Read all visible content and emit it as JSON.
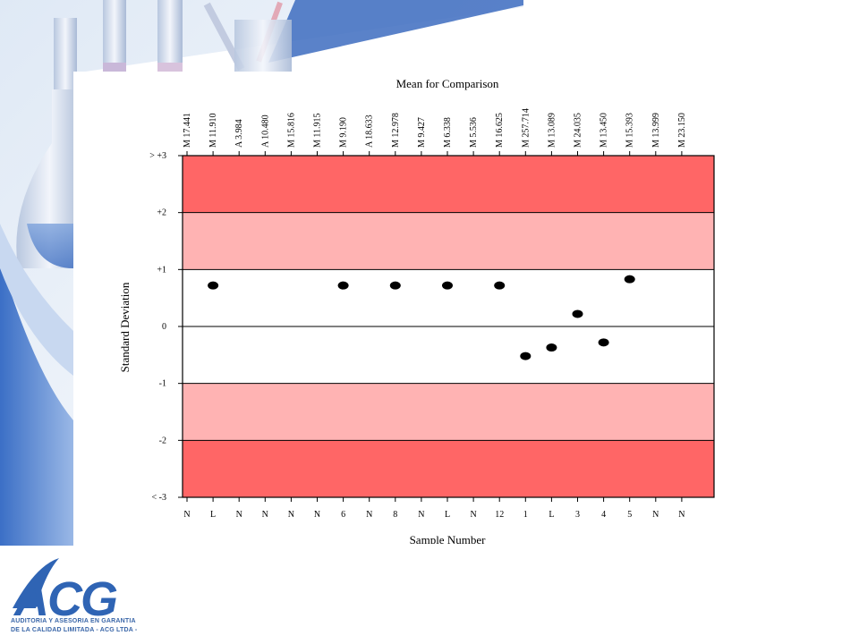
{
  "brand": {
    "logo_text": "ACG",
    "tagline_line1": "AUDITORIA Y ASESORIA EN GARANTIA",
    "tagline_line2": "DE LA CALIDAD LIMITADA - ACG LTDA -"
  },
  "colors": {
    "outer_band": "#ff6666",
    "middle_band": "#ffb3b3",
    "inner_band": "#ffffff",
    "points": "#000000",
    "logo_blue": "#2f64b4"
  },
  "chart_data": {
    "type": "scatter",
    "title": "Mean for Comparison",
    "xlabel": "Sample Number",
    "ylabel": "Standard Deviation",
    "ylim": [
      -3,
      3
    ],
    "y_tick_labels": [
      "> +3",
      "+2",
      "+1",
      "0",
      "-1",
      "-2",
      "< -3"
    ],
    "x_tick_labels": [
      "N",
      "L",
      "N",
      "N",
      "N",
      "N",
      "6",
      "N",
      "8",
      "N",
      "L",
      "N",
      "12",
      "1",
      "L",
      "3",
      "4",
      "5",
      "N",
      "N"
    ],
    "top_tick_labels": [
      "M 17.441",
      "M 11.910",
      "A 3.984",
      "A 10.480",
      "M 15.816",
      "M 11.915",
      "M 9.190",
      "A 18.633",
      "M 12.978",
      "M 9.427",
      "M 6.338",
      "M 5.536",
      "M 16.625",
      "M 257.714",
      "M 13.089",
      "M 24.035",
      "M 13.450",
      "M 15.393",
      "M 13.999",
      "M 23.150"
    ],
    "bands": [
      {
        "from": 2,
        "to": 3,
        "color": "#ff6666"
      },
      {
        "from": 1,
        "to": 2,
        "color": "#ffb3b3"
      },
      {
        "from": -1,
        "to": 1,
        "color": "#ffffff"
      },
      {
        "from": -2,
        "to": -1,
        "color": "#ffb3b3"
      },
      {
        "from": -3,
        "to": -2,
        "color": "#ff6666"
      }
    ],
    "points": [
      {
        "x": 2,
        "y": 0.72
      },
      {
        "x": 7,
        "y": 0.72
      },
      {
        "x": 9,
        "y": 0.72
      },
      {
        "x": 11,
        "y": 0.72
      },
      {
        "x": 13,
        "y": 0.72
      },
      {
        "x": 14,
        "y": -0.52
      },
      {
        "x": 15,
        "y": -0.37
      },
      {
        "x": 16,
        "y": 0.22
      },
      {
        "x": 17,
        "y": -0.28
      },
      {
        "x": 18,
        "y": 0.83
      }
    ]
  }
}
